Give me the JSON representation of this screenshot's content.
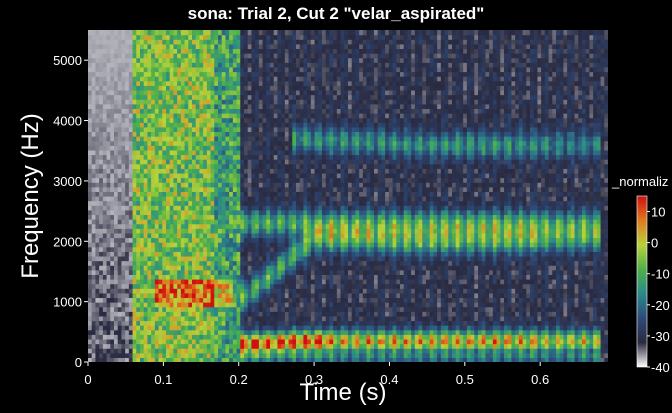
{
  "chart_data": {
    "type": "heatmap",
    "title": "sona: Trial 2, Cut 2 \"velar_aspirated\"",
    "xlabel": "Time (s)",
    "ylabel": "Frequency (Hz)",
    "xlim": [
      0,
      0.69
    ],
    "ylim": [
      0,
      5500
    ],
    "x_ticks": [
      0,
      0.1,
      0.2,
      0.3,
      0.4,
      0.5,
      0.6
    ],
    "x_tick_labels": [
      "0",
      "0.1",
      "0.2",
      "0.3",
      "0.4",
      "0.5",
      "0.6"
    ],
    "y_ticks": [
      0,
      1000,
      2000,
      3000,
      4000,
      5000
    ],
    "y_tick_labels": [
      "0",
      "1000",
      "2000",
      "3000",
      "4000",
      "5000"
    ],
    "colorbar": {
      "label": "_normaliz",
      "range": [
        -40,
        15
      ],
      "ticks": [
        10,
        0,
        -10,
        -20,
        -30,
        -40
      ],
      "tick_labels": [
        "10",
        "0",
        "-10",
        "-20",
        "-30",
        "-40"
      ],
      "colors": [
        "#ffffff",
        "#2a2a40",
        "#2e4a7a",
        "#2a8a8a",
        "#4fb04a",
        "#b8d23a",
        "#e07a20",
        "#d01010"
      ]
    },
    "events": {
      "silence_end": 0.06,
      "burst_start": 0.07,
      "aspiration_end": 0.2,
      "voicing_start": 0.21,
      "voicing_end": 0.66
    },
    "formants": [
      {
        "name": "F1",
        "points": [
          [
            0.21,
            300
          ],
          [
            0.3,
            350
          ],
          [
            0.45,
            350
          ],
          [
            0.66,
            350
          ]
        ]
      },
      {
        "name": "F2",
        "points": [
          [
            0.21,
            1100
          ],
          [
            0.3,
            2050
          ],
          [
            0.45,
            2000
          ],
          [
            0.66,
            2050
          ]
        ]
      },
      {
        "name": "F3",
        "points": [
          [
            0.21,
            2300
          ],
          [
            0.3,
            2300
          ],
          [
            0.45,
            2300
          ],
          [
            0.66,
            2300
          ]
        ]
      },
      {
        "name": "F4",
        "points": [
          [
            0.28,
            3700
          ],
          [
            0.45,
            3600
          ],
          [
            0.66,
            3600
          ]
        ]
      }
    ]
  }
}
